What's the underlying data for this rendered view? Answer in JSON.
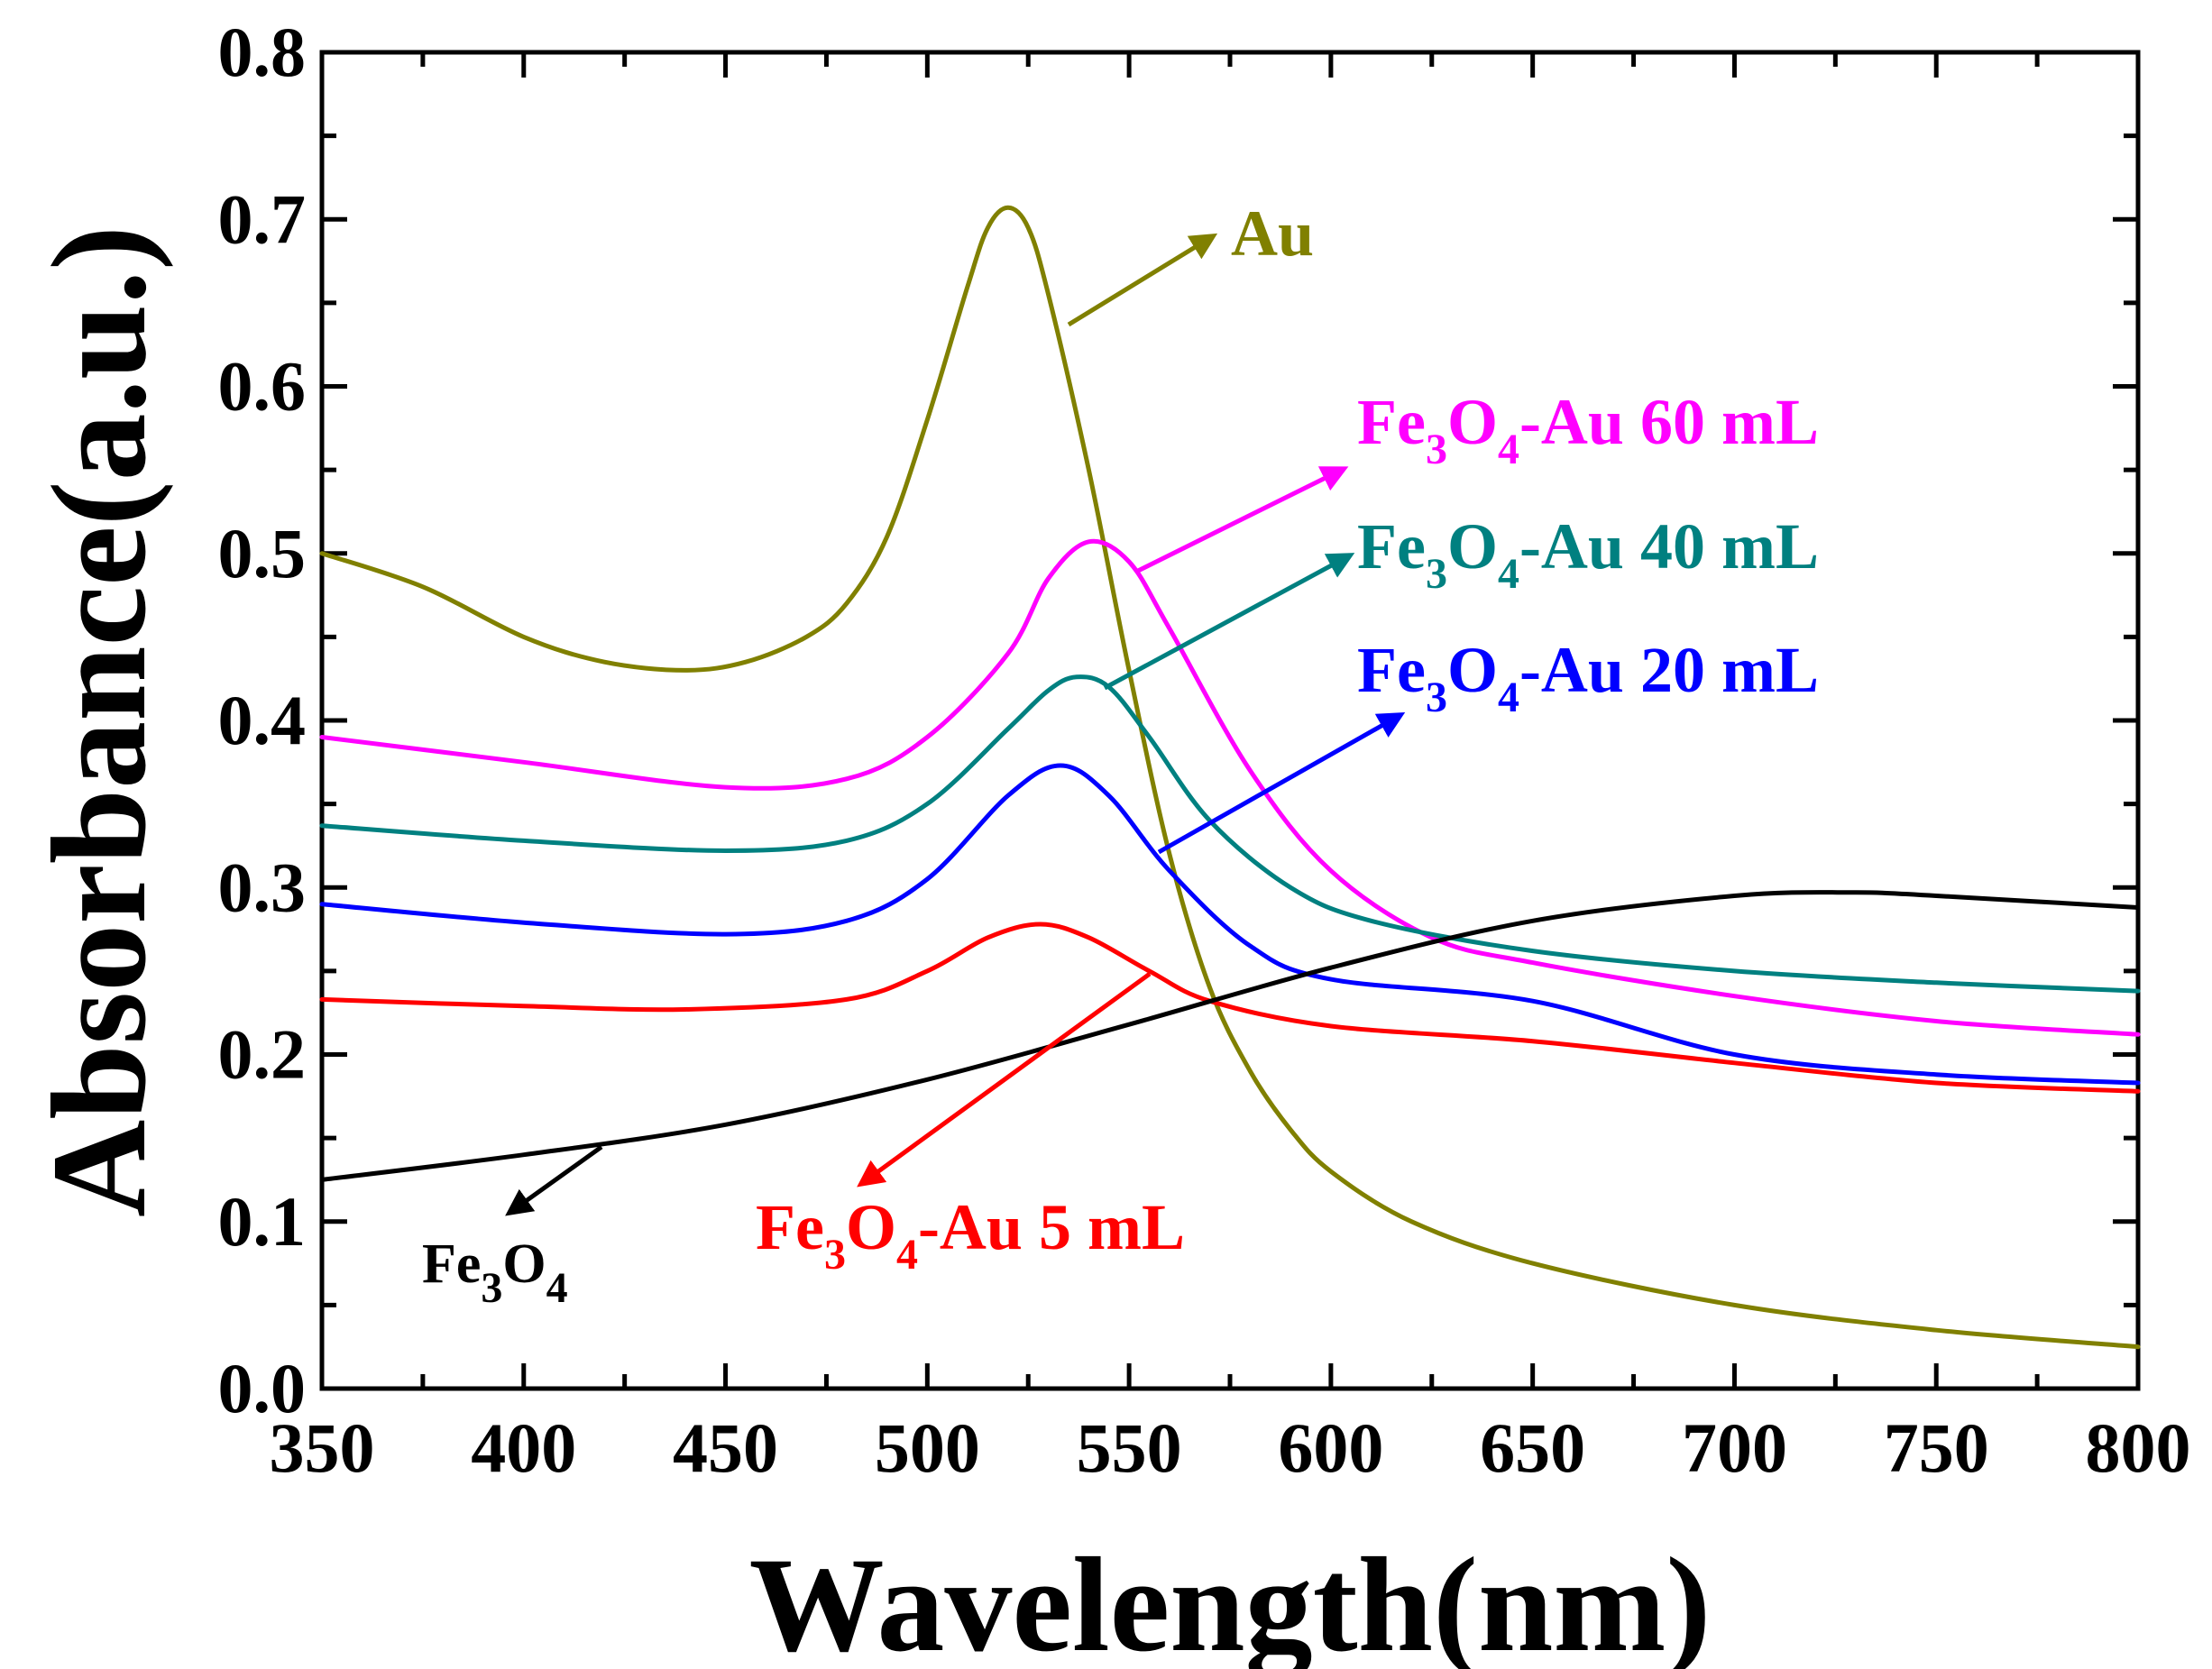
{
  "chart_data": {
    "type": "line",
    "title": "",
    "xlabel": "Wavelength(nm)",
    "ylabel": "Absorbance(a.u.)",
    "xlim": [
      350,
      800
    ],
    "ylim": [
      0.0,
      0.8
    ],
    "x_ticks": [
      350,
      400,
      450,
      500,
      550,
      600,
      650,
      700,
      750,
      800
    ],
    "y_ticks": [
      0.0,
      0.1,
      0.2,
      0.3,
      0.4,
      0.5,
      0.6,
      0.7,
      0.8
    ],
    "x_tick_labels": [
      "350",
      "400",
      "450",
      "500",
      "550",
      "600",
      "650",
      "700",
      "750",
      "800"
    ],
    "y_tick_labels": [
      "0.0",
      "0.1",
      "0.2",
      "0.3",
      "0.4",
      "0.5",
      "0.6",
      "0.7",
      "0.8"
    ],
    "grid": false,
    "series": [
      {
        "name": "Au",
        "color": "#808000",
        "x": [
          350,
          375,
          400,
          420,
          440,
          455,
          470,
          480,
          490,
          500,
          510,
          515,
          520,
          525,
          530,
          540,
          550,
          560,
          570,
          580,
          590,
          600,
          620,
          650,
          700,
          750,
          800
        ],
        "y": [
          0.5,
          0.48,
          0.45,
          0.435,
          0.43,
          0.435,
          0.45,
          0.47,
          0.51,
          0.58,
          0.66,
          0.695,
          0.707,
          0.695,
          0.655,
          0.55,
          0.43,
          0.32,
          0.24,
          0.19,
          0.155,
          0.13,
          0.1,
          0.075,
          0.05,
          0.035,
          0.025
        ]
      },
      {
        "name": "Fe3O4-Au 60 mL",
        "color": "#ff00ff",
        "x": [
          350,
          400,
          450,
          480,
          500,
          520,
          530,
          540,
          550,
          560,
          580,
          600,
          625,
          650,
          700,
          750,
          800
        ],
        "y": [
          0.39,
          0.375,
          0.36,
          0.365,
          0.39,
          0.44,
          0.485,
          0.507,
          0.495,
          0.455,
          0.37,
          0.31,
          0.27,
          0.255,
          0.235,
          0.22,
          0.212
        ]
      },
      {
        "name": "Fe3O4-Au 40 mL",
        "color": "#008080",
        "x": [
          350,
          400,
          450,
          480,
          500,
          520,
          530,
          537,
          545,
          555,
          570,
          590,
          610,
          650,
          700,
          750,
          800
        ],
        "y": [
          0.337,
          0.328,
          0.322,
          0.328,
          0.35,
          0.395,
          0.418,
          0.426,
          0.42,
          0.39,
          0.34,
          0.3,
          0.28,
          0.262,
          0.25,
          0.243,
          0.238
        ]
      },
      {
        "name": "Fe3O4-Au 20 mL",
        "color": "#0000ff",
        "x": [
          350,
          400,
          450,
          480,
          500,
          520,
          533,
          545,
          560,
          580,
          600,
          650,
          700,
          750,
          800
        ],
        "y": [
          0.29,
          0.279,
          0.272,
          0.28,
          0.305,
          0.355,
          0.373,
          0.355,
          0.31,
          0.265,
          0.245,
          0.232,
          0.2,
          0.188,
          0.183
        ]
      },
      {
        "name": "Fe3O4-Au 5 mL",
        "color": "#ff0000",
        "x": [
          350,
          400,
          440,
          480,
          500,
          515,
          528,
          540,
          555,
          570,
          600,
          650,
          700,
          750,
          800
        ],
        "y": [
          0.233,
          0.229,
          0.227,
          0.233,
          0.25,
          0.27,
          0.278,
          0.27,
          0.25,
          0.232,
          0.217,
          0.208,
          0.195,
          0.183,
          0.178
        ]
      },
      {
        "name": "Fe3O4",
        "color": "#000000",
        "x": [
          350,
          400,
          450,
          500,
          550,
          600,
          650,
          700,
          730,
          750,
          800
        ],
        "y": [
          0.125,
          0.14,
          0.158,
          0.185,
          0.218,
          0.252,
          0.28,
          0.295,
          0.297,
          0.295,
          0.288
        ]
      }
    ],
    "annotations": [
      {
        "name": "Au",
        "main": "Au",
        "color": "#808000"
      },
      {
        "name": "Fe3O4-Au 60 mL",
        "main": "Fe",
        "sub1": "3",
        "mid": "O",
        "sub2": "4",
        "rest": "-Au 60 mL",
        "color": "#ff00ff"
      },
      {
        "name": "Fe3O4-Au 40 mL",
        "main": "Fe",
        "sub1": "3",
        "mid": "O",
        "sub2": "4",
        "rest": "-Au 40 mL",
        "color": "#008080"
      },
      {
        "name": "Fe3O4-Au 20 mL",
        "main": "Fe",
        "sub1": "3",
        "mid": "O",
        "sub2": "4",
        "rest": "-Au 20 mL",
        "color": "#0000ff"
      },
      {
        "name": "Fe3O4-Au 5 mL",
        "main": "Fe",
        "sub1": "3",
        "mid": "O",
        "sub2": "4",
        "rest": "-Au 5 mL",
        "color": "#ff0000"
      },
      {
        "name": "Fe3O4",
        "main": "Fe",
        "sub1": "3",
        "mid": "O",
        "sub2": "4",
        "rest": "",
        "color": "#000000"
      }
    ]
  }
}
